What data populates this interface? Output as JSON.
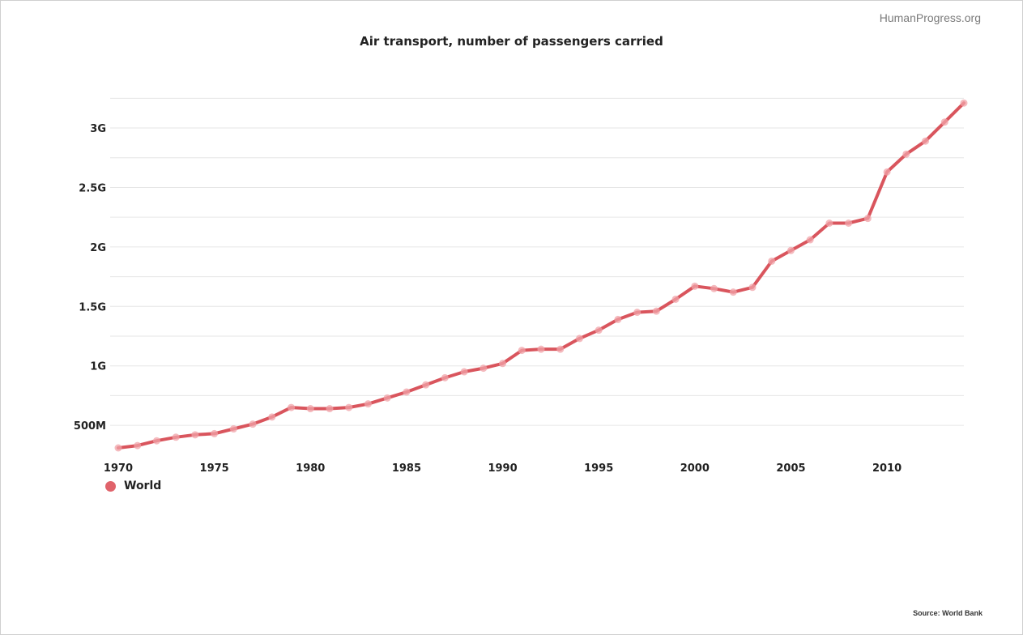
{
  "brand": "HumanProgress.org",
  "source": "Source: World Bank",
  "colors": {
    "series": "#d9555d",
    "marker": "#f0a3a8",
    "grid": "#e6e6e6"
  },
  "chart_data": {
    "type": "line",
    "title": "Air transport, number of passengers carried",
    "xlabel": "",
    "ylabel": "",
    "xlim": [
      1970,
      2014
    ],
    "ylim": [
      310000000,
      3300000000
    ],
    "x_ticks": [
      1970,
      1975,
      1980,
      1985,
      1990,
      1995,
      2000,
      2005,
      2010
    ],
    "y_ticks": [
      {
        "value": 500000000,
        "label": "500M"
      },
      {
        "value": 1000000000,
        "label": "1G"
      },
      {
        "value": 1500000000,
        "label": "1.5G"
      },
      {
        "value": 2000000000,
        "label": "2G"
      },
      {
        "value": 2500000000,
        "label": "2.5G"
      },
      {
        "value": 3000000000,
        "label": "3G"
      }
    ],
    "grid": true,
    "legend_position": "bottom-left",
    "series": [
      {
        "name": "World",
        "x": [
          1970,
          1971,
          1972,
          1973,
          1974,
          1975,
          1976,
          1977,
          1978,
          1979,
          1980,
          1981,
          1982,
          1983,
          1984,
          1985,
          1986,
          1987,
          1988,
          1989,
          1990,
          1991,
          1992,
          1993,
          1994,
          1995,
          1996,
          1997,
          1998,
          1999,
          2000,
          2001,
          2002,
          2003,
          2004,
          2005,
          2006,
          2007,
          2008,
          2009,
          2010,
          2011,
          2012,
          2013,
          2014
        ],
        "y": [
          310000000,
          330000000,
          370000000,
          400000000,
          420000000,
          430000000,
          470000000,
          510000000,
          570000000,
          650000000,
          640000000,
          640000000,
          650000000,
          680000000,
          730000000,
          780000000,
          840000000,
          900000000,
          950000000,
          980000000,
          1020000000,
          1130000000,
          1140000000,
          1140000000,
          1230000000,
          1300000000,
          1390000000,
          1450000000,
          1460000000,
          1560000000,
          1670000000,
          1650000000,
          1620000000,
          1660000000,
          1880000000,
          1970000000,
          2060000000,
          2200000000,
          2200000000,
          2240000000,
          2630000000,
          2780000000,
          2890000000,
          3050000000,
          3210000000
        ]
      }
    ]
  }
}
